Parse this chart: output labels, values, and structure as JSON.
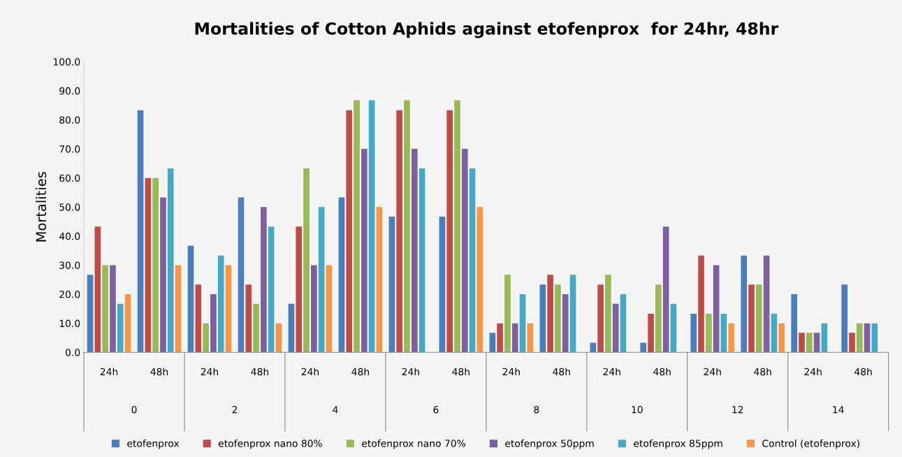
{
  "chart_data": {
    "type": "bar",
    "title": "Mortalities of Cotton Aphids against etofenprox  for 24hr, 48hr",
    "ylabel": "Mortalities",
    "categories": [
      "24h",
      "48h",
      "24h",
      "48h",
      "24h",
      "48h",
      "24h",
      "48h",
      "24h",
      "48h",
      "24h",
      "48h",
      "24h",
      "48h",
      "24h",
      "48h"
    ],
    "annotations": [
      "0",
      "2",
      "4",
      "6",
      "8",
      "10",
      "12",
      "14"
    ],
    "series": [
      {
        "name": "etofenprox",
        "color": "#4a7ebb",
        "values": [
          26.7,
          83.3,
          36.7,
          53.3,
          16.7,
          53.3,
          46.7,
          46.7,
          6.7,
          23.3,
          3.3,
          3.3,
          13.3,
          33.3,
          20,
          23.3
        ]
      },
      {
        "name": "etofenprox nano 80%",
        "color": "#be4b48",
        "values": [
          43.3,
          60,
          23.3,
          23.3,
          43.3,
          83.3,
          83.3,
          83.3,
          10,
          26.7,
          23.3,
          13.3,
          33.3,
          23.3,
          6.7,
          6.7
        ]
      },
      {
        "name": "etofenprox nano 70%",
        "color": "#98b954",
        "values": [
          30,
          60,
          10,
          16.7,
          63.3,
          86.7,
          86.7,
          86.7,
          26.7,
          23.3,
          26.7,
          23.3,
          13.3,
          23.3,
          6.7,
          10
        ]
      },
      {
        "name": "etofenprox 50ppm",
        "color": "#7d60a0",
        "values": [
          30,
          53.3,
          20,
          50,
          30,
          70,
          70,
          70,
          10,
          20,
          16.7,
          43.3,
          30,
          33.3,
          6.7,
          10
        ]
      },
      {
        "name": "etofenprox 85ppm",
        "color": "#46aac5",
        "values": [
          16.7,
          63.3,
          33.3,
          43.3,
          50,
          86.7,
          63.3,
          63.3,
          20,
          26.7,
          20,
          16.7,
          13.3,
          13.3,
          10,
          10
        ]
      },
      {
        "name": "Control (etofenprox)",
        "color": "#f79646",
        "values": [
          20,
          30,
          30,
          10,
          30,
          50,
          0,
          50,
          10,
          0,
          0,
          0,
          10,
          10,
          0,
          0
        ]
      }
    ],
    "ylim": [
      0,
      100
    ],
    "yticks": [
      {
        "value": 0,
        "label": "0.0"
      },
      {
        "value": 10,
        "label": "10.0"
      },
      {
        "value": 20,
        "label": "20.0"
      },
      {
        "value": 30,
        "label": "30.0"
      },
      {
        "value": 40,
        "label": "40.0"
      },
      {
        "value": 50,
        "label": "50.0"
      },
      {
        "value": 60,
        "label": "60.0"
      },
      {
        "value": 70,
        "label": "70.0"
      },
      {
        "value": 80,
        "label": "80.0"
      },
      {
        "value": 90,
        "label": "90.0"
      },
      {
        "value": 100,
        "label": "100.0"
      }
    ],
    "grid": false,
    "legend": "bottom"
  }
}
